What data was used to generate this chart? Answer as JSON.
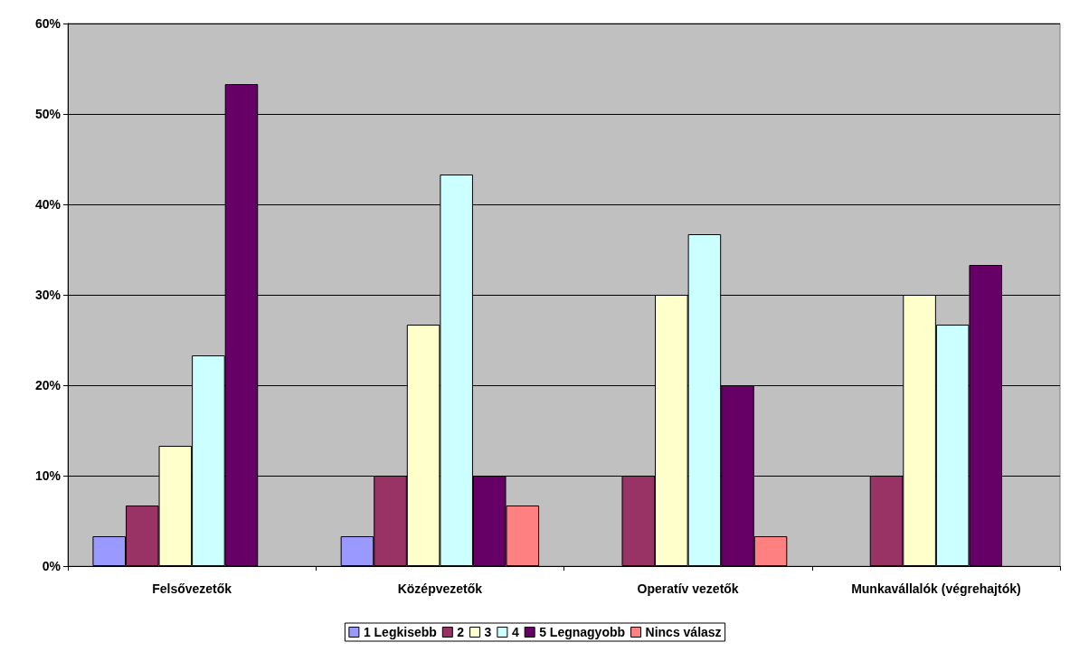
{
  "chart_data": {
    "type": "bar",
    "categories": [
      "Felsővezetők",
      "Középvezetők",
      "Operatív vezetők",
      "Munkavállalók (végrehajtók)"
    ],
    "series": [
      {
        "name": "1 Legkisebb",
        "color": "#9999ff",
        "values": [
          3.3,
          3.3,
          null,
          null
        ]
      },
      {
        "name": "2",
        "color": "#993366",
        "values": [
          6.7,
          10,
          10,
          10
        ]
      },
      {
        "name": "3",
        "color": "#ffffcc",
        "values": [
          13.3,
          26.7,
          30,
          30
        ]
      },
      {
        "name": "4",
        "color": "#ccffff",
        "values": [
          23.3,
          43.3,
          36.7,
          26.7
        ]
      },
      {
        "name": "5 Legnagyobb",
        "color": "#660066",
        "values": [
          53.3,
          10,
          20,
          33.3
        ]
      },
      {
        "name": "Nincs válasz",
        "color": "#ff8080",
        "values": [
          null,
          6.7,
          3.3,
          null
        ]
      }
    ],
    "ylim": [
      0,
      60
    ],
    "yticks": [
      {
        "value": 0,
        "label": "0%"
      },
      {
        "value": 10,
        "label": "10%"
      },
      {
        "value": 20,
        "label": "20%"
      },
      {
        "value": 30,
        "label": "30%"
      },
      {
        "value": 40,
        "label": "40%"
      },
      {
        "value": 50,
        "label": "50%"
      },
      {
        "value": 60,
        "label": "60%"
      }
    ],
    "grid": "y",
    "legend": "bottom"
  }
}
